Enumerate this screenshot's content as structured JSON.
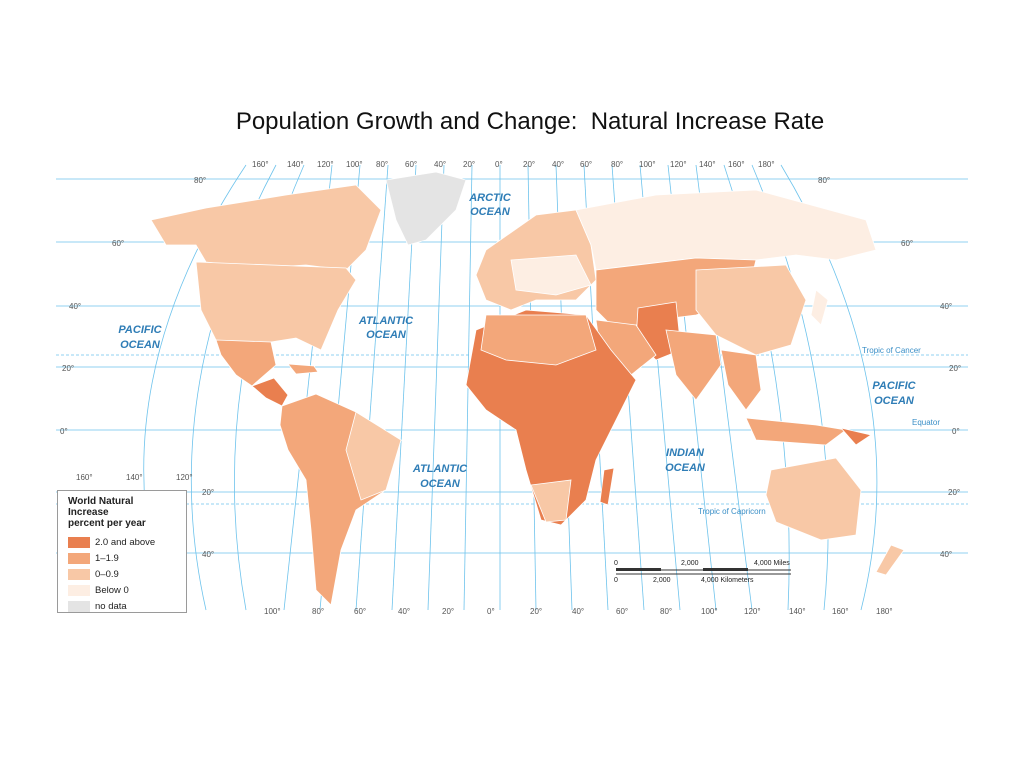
{
  "title": "Population Growth and Change:  Natural Increase Rate",
  "colors": {
    "ocean": "#ffffff",
    "grid": "#6ec3ec",
    "c20": "#e97f4f",
    "c1019": "#f3a77a",
    "c009": "#f8c8a6",
    "below0": "#fdeee3",
    "nodata": "#e4e4e4"
  },
  "legend": {
    "title_line1": "World Natural Increase",
    "title_line2": "percent per year",
    "items": [
      {
        "label": "2.0 and above",
        "color": "#e97f4f"
      },
      {
        "label": "1–1.9",
        "color": "#f3a77a"
      },
      {
        "label": "0–0.9",
        "color": "#f8c8a6"
      },
      {
        "label": "Below 0",
        "color": "#fdeee3"
      },
      {
        "label": "no data",
        "color": "#e4e4e4"
      }
    ]
  },
  "oceans": {
    "arctic_1": "ARCTIC",
    "arctic_2": "OCEAN",
    "pacific_1": "PACIFIC",
    "pacific_2": "OCEAN",
    "atlantic_n1": "ATLANTIC",
    "atlantic_n2": "OCEAN",
    "atlantic_s1": "ATLANTIC",
    "atlantic_s2": "OCEAN",
    "indian_1": "INDIAN",
    "indian_2": "OCEAN",
    "pacific_e1": "PACIFIC",
    "pacific_e2": "OCEAN"
  },
  "lines": {
    "cancer": "Tropic of Cancer",
    "equator": "Equator",
    "capricorn": "Tropic of Capricorn"
  },
  "top_longitudes": [
    "160°",
    "140°",
    "120°",
    "100°",
    "80°",
    "60°",
    "40°",
    "20°",
    "0°",
    "20°",
    "40°",
    "60°",
    "80°",
    "100°",
    "120°",
    "140°",
    "160°",
    "180°"
  ],
  "bottom_longitudes": [
    "100°",
    "80°",
    "60°",
    "40°",
    "20°",
    "0°",
    "20°",
    "40°",
    "60°",
    "80°",
    "100°",
    "120°",
    "140°",
    "160°",
    "180°"
  ],
  "mid_left_longitudes": [
    "160°",
    "140°",
    "120°"
  ],
  "lat_labels": {
    "n80": "80°",
    "n60": "60°",
    "n40": "40°",
    "n20": "20°",
    "eq": "0°",
    "s20": "20°",
    "s40": "40°"
  },
  "scale": {
    "miles_0": "0",
    "miles_2000": "2,000",
    "miles_4000": "4,000 Miles",
    "km_0": "0",
    "km_2000": "2,000",
    "km_4000": "4,000 Kilometers"
  }
}
